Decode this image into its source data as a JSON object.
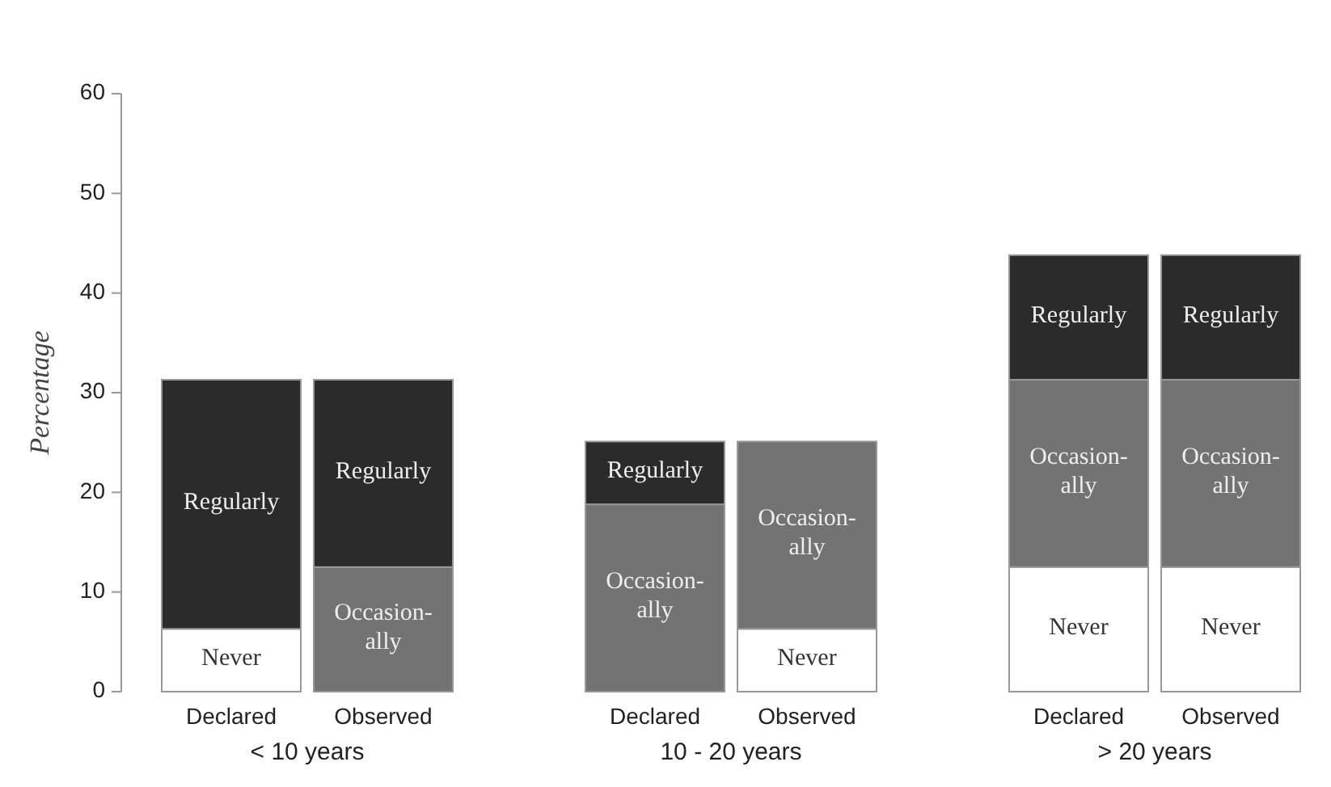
{
  "chart_data": {
    "type": "bar",
    "stacked": true,
    "ylabel": "Percentage",
    "categories": [
      "Declared",
      "Observed",
      "Declared",
      "Observed",
      "Declared",
      "Observed"
    ],
    "series": [
      {
        "name": "Never",
        "color": "#ffffff",
        "values": [
          6.3,
          0,
          0,
          6.3,
          12.5,
          12.5
        ]
      },
      {
        "name": "Occasion-ally",
        "color": "#737373",
        "values": [
          0,
          12.5,
          18.8,
          18.8,
          18.8,
          18.8
        ]
      },
      {
        "name": "Regularly",
        "color": "#2b2b2b",
        "values": [
          25,
          18.8,
          6.3,
          0,
          12.5,
          12.5
        ]
      }
    ],
    "ylim": [
      0,
      60
    ],
    "yticks": [
      0,
      10,
      20,
      30,
      40,
      50,
      60
    ],
    "annotations": [
      "< 10 years",
      "10 - 20 years",
      "> 20 years"
    ]
  }
}
